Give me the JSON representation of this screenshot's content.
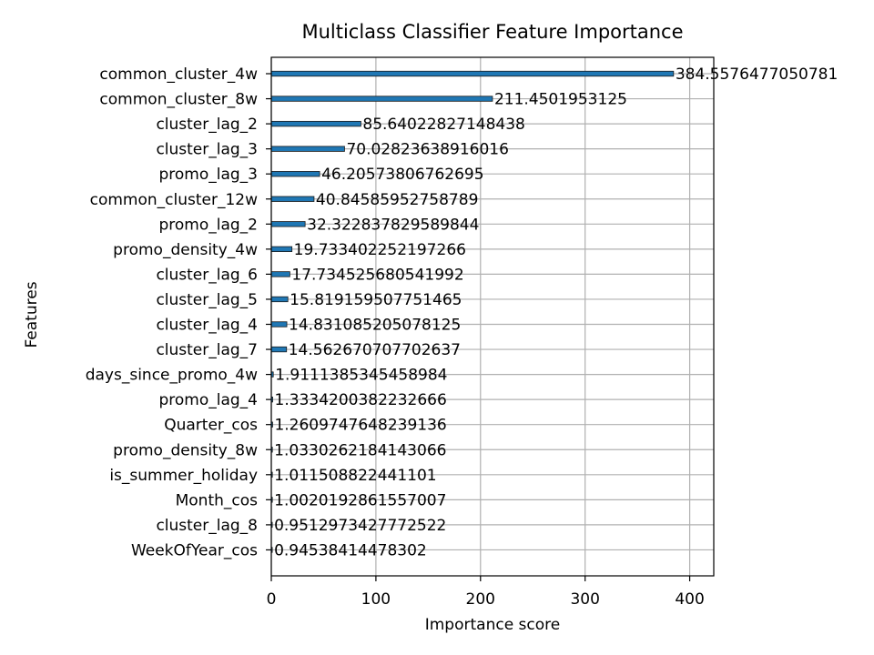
{
  "chart_data": {
    "type": "bar",
    "orientation": "horizontal",
    "title": "Multiclass Classifier Feature Importance",
    "xlabel": "Importance score",
    "ylabel": "Features",
    "xlim": [
      0,
      423
    ],
    "xticks": [
      0,
      100,
      200,
      300,
      400
    ],
    "grid": true,
    "bar_color": "#1f77b4",
    "categories": [
      "common_cluster_4w",
      "common_cluster_8w",
      "cluster_lag_2",
      "cluster_lag_3",
      "promo_lag_3",
      "common_cluster_12w",
      "promo_lag_2",
      "promo_density_4w",
      "cluster_lag_6",
      "cluster_lag_5",
      "cluster_lag_4",
      "cluster_lag_7",
      "days_since_promo_4w",
      "promo_lag_4",
      "Quarter_cos",
      "promo_density_8w",
      "is_summer_holiday",
      "Month_cos",
      "cluster_lag_8",
      "WeekOfYear_cos"
    ],
    "values": [
      384.5576477050781,
      211.4501953125,
      85.64022827148438,
      70.02823638916016,
      46.20573806762695,
      40.84585952758789,
      32.322837829589844,
      19.733402252197266,
      17.734525680541992,
      15.819159507751465,
      14.831085205078125,
      14.562670707702637,
      1.9111385345458984,
      1.3334200382232666,
      1.2609747648239136,
      1.0330262184143066,
      1.011508822441101,
      1.0020192861557007,
      0.9512973427772522,
      0.94538414478302
    ],
    "value_labels": [
      "384.5576477050781",
      "211.4501953125",
      "85.64022827148438",
      "70.02823638916016",
      "46.20573806762695",
      "40.84585952758789",
      "32.322837829589844",
      "19.733402252197266",
      "17.734525680541992",
      "15.819159507751465",
      "14.831085205078125",
      "14.562670707702637",
      "1.9111385345458984",
      "1.3334200382232666",
      "1.2609747648239136",
      "1.0330262184143066",
      "1.011508822441101",
      "1.0020192861557007",
      "0.9512973427772522",
      "0.94538414478302"
    ]
  }
}
